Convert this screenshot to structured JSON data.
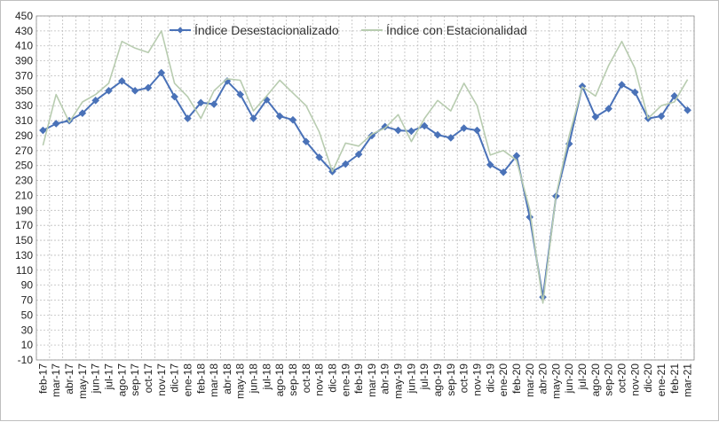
{
  "chart_data": {
    "type": "line",
    "title": "",
    "xlabel": "",
    "ylabel": "",
    "ylim": [
      -10,
      450
    ],
    "ystep": 20,
    "grid": true,
    "legend_position": "top-center",
    "categories": [
      "feb-17",
      "mar-17",
      "abr-17",
      "may-17",
      "jun-17",
      "jul-17",
      "ago-17",
      "sep-17",
      "oct-17",
      "nov-17",
      "dic-17",
      "ene-18",
      "feb-18",
      "mar-18",
      "abr-18",
      "may-18",
      "jun-18",
      "jul-18",
      "ago-18",
      "sep-18",
      "oct-18",
      "nov-18",
      "dic-18",
      "ene-19",
      "feb-19",
      "mar-19",
      "abr-19",
      "may-19",
      "jun-19",
      "jul-19",
      "ago-19",
      "sep-19",
      "oct-19",
      "nov-19",
      "dic-19",
      "ene-20",
      "feb-20",
      "mar-20",
      "abr-20",
      "may-20",
      "jun-20",
      "jul-20",
      "ago-20",
      "sep-20",
      "oct-20",
      "nov-20",
      "dic-20",
      "ene-21",
      "feb-21",
      "mar-21"
    ],
    "series": [
      {
        "name": "Índice Desestacionalizado",
        "color": "#4a72b8",
        "marker": "diamond",
        "values": [
          297,
          306,
          310,
          320,
          337,
          350,
          363,
          350,
          354,
          374,
          342,
          313,
          334,
          332,
          363,
          345,
          313,
          338,
          316,
          311,
          282,
          261,
          242,
          252,
          265,
          290,
          302,
          297,
          296,
          303,
          291,
          287,
          300,
          297,
          251,
          241,
          263,
          181,
          74,
          209,
          279,
          356,
          315,
          326,
          358,
          348,
          313,
          316,
          343,
          324
        ]
      },
      {
        "name": "Índice con Estacionalidad",
        "color": "#b8ccb0",
        "marker": "none",
        "values": [
          277,
          345,
          308,
          335,
          345,
          360,
          416,
          407,
          401,
          430,
          360,
          342,
          313,
          350,
          366,
          364,
          323,
          343,
          364,
          347,
          330,
          295,
          242,
          280,
          276,
          292,
          300,
          318,
          282,
          313,
          337,
          323,
          360,
          330,
          264,
          270,
          257,
          191,
          66,
          210,
          290,
          355,
          343,
          384,
          416,
          380,
          313,
          330,
          335,
          365
        ]
      }
    ]
  }
}
